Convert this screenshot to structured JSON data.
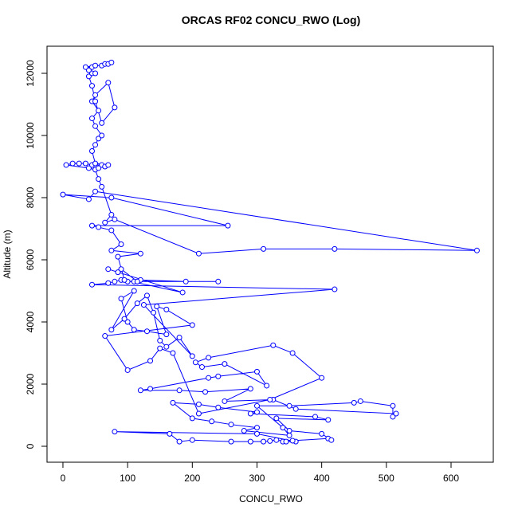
{
  "chart_data": {
    "type": "line",
    "title": "ORCAS RF02 CONCU_RWO (Log)",
    "x_label": "CONCU_RWO",
    "y_label": "Altitude (m)",
    "xlim": [
      -24.6,
      665.3
    ],
    "ylim": [
      -513,
      12872
    ],
    "xticks": [
      0,
      100,
      200,
      300,
      400,
      500,
      600
    ],
    "yticks": [
      0,
      2000,
      4000,
      6000,
      8000,
      10000,
      12000
    ],
    "series": [
      {
        "color": "#0000ff",
        "x": [
          340,
          360,
          300,
          80,
          165,
          180,
          200,
          260,
          290,
          310,
          320,
          330,
          345,
          355,
          410,
          415,
          400,
          350,
          330,
          410,
          390,
          290,
          300,
          240,
          210,
          170,
          200,
          230,
          260,
          300,
          280,
          350,
          340,
          300,
          350,
          450,
          460,
          510,
          510,
          515,
          360,
          325,
          250,
          290,
          220,
          180,
          120,
          135,
          225,
          240,
          300,
          315,
          250,
          215,
          205,
          225,
          325,
          355,
          400,
          320,
          210,
          170,
          150,
          135,
          100,
          65,
          200,
          160,
          145,
          160,
          130,
          110,
          100,
          90,
          110,
          75,
          95,
          115,
          130,
          140,
          150,
          160,
          180,
          200,
          125,
          420,
          45,
          70,
          80,
          90,
          100,
          110,
          120,
          190,
          240,
          115,
          90,
          85,
          70,
          185,
          95,
          85,
          120,
          75,
          90,
          75,
          55,
          45,
          255,
          75,
          0,
          40,
          50,
          640,
          420,
          310,
          210,
          80,
          65,
          75,
          60,
          55,
          50,
          40,
          5,
          15,
          25,
          35,
          45,
          60,
          55,
          65,
          70,
          50,
          45,
          50,
          55,
          60,
          50,
          45,
          55,
          45,
          50,
          70,
          80,
          60,
          50,
          45,
          40,
          45,
          50,
          40,
          45,
          35,
          50,
          60,
          65,
          70,
          75
        ],
        "values": [
          150,
          150,
          400,
          470,
          400,
          150,
          200,
          150,
          150,
          150,
          170,
          200,
          150,
          180,
          250,
          200,
          400,
          500,
          900,
          850,
          950,
          1050,
          1100,
          1250,
          1350,
          1400,
          900,
          800,
          700,
          600,
          500,
          350,
          600,
          1300,
          1300,
          1400,
          1450,
          1300,
          950,
          1050,
          1200,
          1500,
          1450,
          1850,
          1750,
          1800,
          1800,
          1850,
          2200,
          2250,
          2400,
          1950,
          2650,
          2550,
          2700,
          2850,
          3250,
          3000,
          2200,
          1500,
          1050,
          3000,
          3150,
          2750,
          2450,
          3550,
          3900,
          4400,
          4500,
          3600,
          3700,
          3750,
          4000,
          4750,
          5000,
          3750,
          4100,
          4600,
          4850,
          4300,
          3400,
          3200,
          3500,
          2900,
          4550,
          5050,
          5200,
          5250,
          5300,
          5350,
          5300,
          5300,
          5350,
          5300,
          5300,
          5300,
          5700,
          5600,
          5700,
          4950,
          5350,
          6100,
          6200,
          6300,
          6500,
          6950,
          7050,
          7100,
          7100,
          8000,
          8100,
          7950,
          8200,
          6300,
          6350,
          6350,
          6200,
          7300,
          7200,
          7450,
          8350,
          8600,
          8900,
          8950,
          9050,
          9100,
          9100,
          9100,
          9050,
          9050,
          8950,
          9000,
          9050,
          9100,
          9500,
          9700,
          9900,
          10000,
          10300,
          10550,
          10800,
          11100,
          11300,
          11700,
          10900,
          10400,
          11100,
          11600,
          11900,
          12000,
          12000,
          12100,
          12200,
          12200,
          12250,
          12250,
          12300,
          12300,
          12350
        ]
      }
    ]
  }
}
